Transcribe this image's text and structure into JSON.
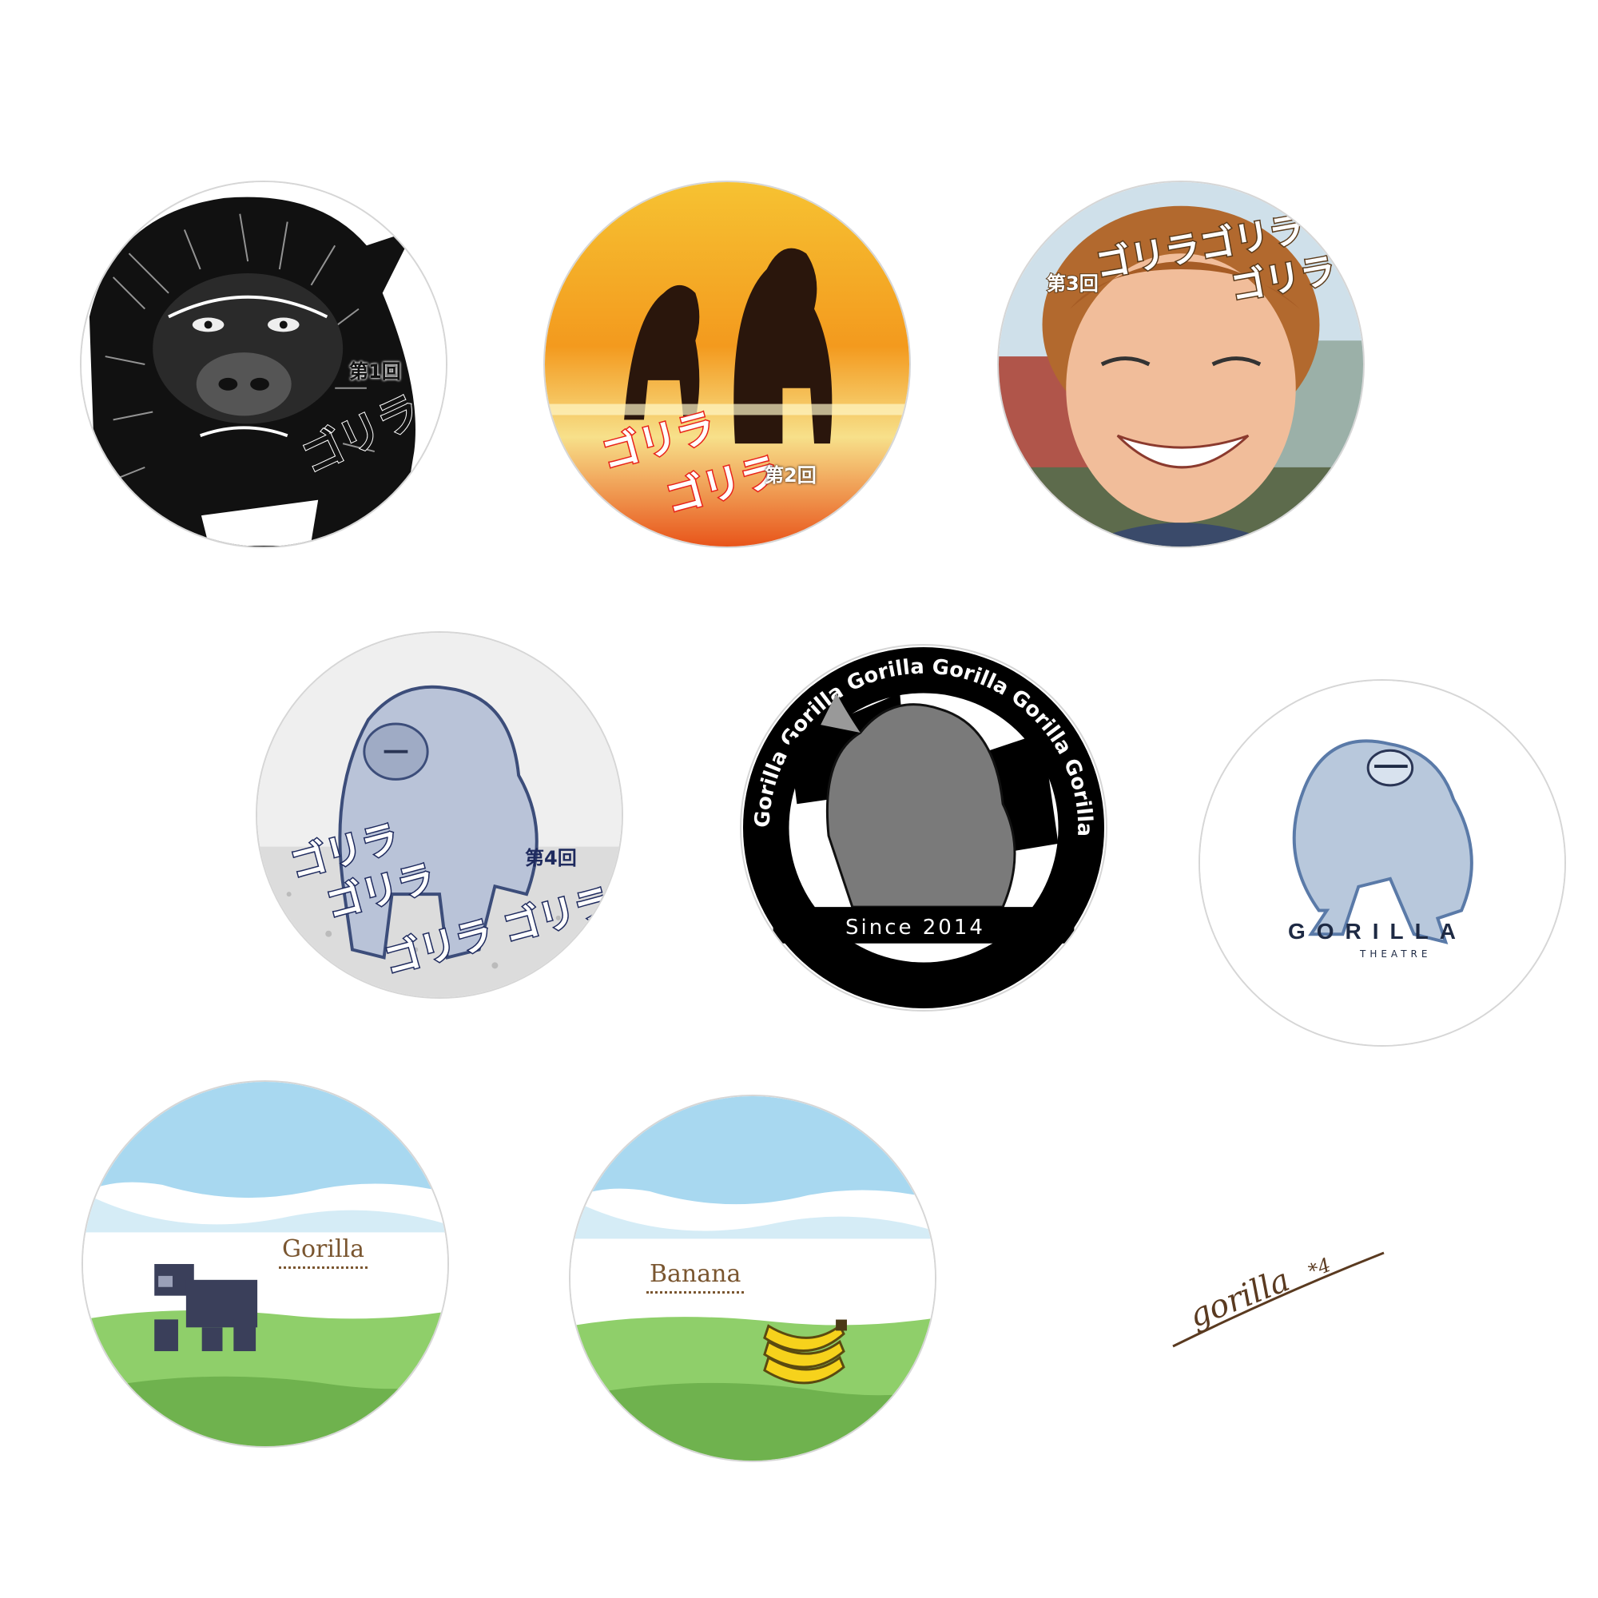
{
  "badges": {
    "b1": {
      "text_main": "ゴリラ",
      "text_round": "第1回"
    },
    "b2": {
      "text_line1": "ゴリラ",
      "text_line2": "ゴリラ",
      "text_round": "第2回"
    },
    "b3": {
      "text_line1": "ゴリラゴリラ",
      "text_line2": "ゴリラ",
      "text_round": "第3回"
    },
    "b4": {
      "text_line1": "ゴリラ",
      "text_line2": "ゴリラ",
      "text_line3": "ゴリラ ゴリラ",
      "text_round": "第4回"
    },
    "b5": {
      "ring_text": "Gorilla Gorilla Gorilla Gorilla Gorilla Gorilla",
      "since": "Since 2014"
    },
    "b6": {
      "brand": "GORILLA",
      "sub": "THEATRE"
    },
    "b7": {
      "label": "Gorilla"
    },
    "b8": {
      "label": "Banana"
    },
    "signature": {
      "text": "gorilla",
      "sup": "*4"
    }
  },
  "colors": {
    "border": "#d6d6d6",
    "navy": "#1e2a44",
    "sunset_orange": "#f08a1c",
    "red_text": "#e8231a",
    "brown_label": "#7a5630",
    "sky": "#a8d8f0",
    "grass": "#8fcf6a"
  }
}
